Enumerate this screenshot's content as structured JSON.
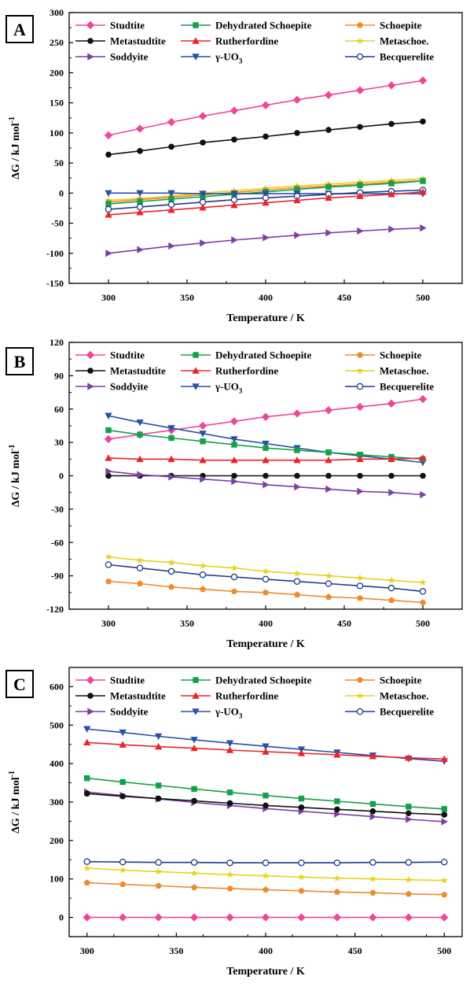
{
  "series_styles": [
    {
      "key": "studtite",
      "color": "#f0469a",
      "marker": "diamond"
    },
    {
      "key": "dehydrated",
      "color": "#13a04a",
      "marker": "square"
    },
    {
      "key": "schoepite",
      "color": "#f08a2c",
      "marker": "pentagon"
    },
    {
      "key": "metastudtite",
      "color": "#111111",
      "marker": "circle"
    },
    {
      "key": "rutherfordine",
      "color": "#e8262a",
      "marker": "triangle-up"
    },
    {
      "key": "metaschoe",
      "color": "#e8d21a",
      "marker": "star"
    },
    {
      "key": "soddyite",
      "color": "#7b3fa6",
      "marker": "triangle-right"
    },
    {
      "key": "uo3",
      "color": "#2a4fa8",
      "marker": "triangle-down"
    },
    {
      "key": "becquerelite",
      "color": "#1f3a8a",
      "marker": "open-circle"
    }
  ],
  "legend_labels": {
    "studtite": "Studtite",
    "dehydrated": "Dehydrated Schoepite",
    "schoepite": "Schoepite",
    "metastudtite": "Metastudtite",
    "rutherfordine": "Rutherfordine",
    "metaschoe": "Metaschoe.",
    "soddyite": "Soddyite",
    "uo3": "γ-UO",
    "uo3_sub": "3",
    "becquerelite": "Becquerelite"
  },
  "chart_data": [
    {
      "panel": "A",
      "type": "line",
      "xlabel": "Temperature / K",
      "ylabel": "ΔG / kJ mol",
      "ylabel_sup": "-1",
      "xlim": [
        275,
        525
      ],
      "ylim": [
        -150,
        300
      ],
      "xticks": [
        300,
        350,
        400,
        450,
        500
      ],
      "yticks": [
        -150,
        -100,
        -50,
        0,
        50,
        100,
        150,
        200,
        250,
        300
      ],
      "x": [
        300,
        320,
        340,
        360,
        380,
        400,
        420,
        440,
        460,
        480,
        500
      ],
      "series": [
        {
          "key": "studtite",
          "name": "Studtite",
          "values": [
            96,
            107,
            118,
            128,
            137,
            146,
            155,
            163,
            171,
            179,
            187
          ]
        },
        {
          "key": "metastudtite",
          "name": "Metastudtite",
          "values": [
            64,
            70,
            77,
            84,
            89,
            94,
            100,
            105,
            110,
            115,
            119
          ]
        },
        {
          "key": "metaschoe",
          "name": "Metaschoe.",
          "values": [
            -12,
            -9,
            -5,
            0,
            4,
            8,
            12,
            15,
            18,
            21,
            24
          ]
        },
        {
          "key": "schoepite",
          "name": "Schoepite",
          "values": [
            -15,
            -11,
            -7,
            -3,
            1,
            5,
            9,
            12,
            15,
            18,
            21
          ]
        },
        {
          "key": "dehydrated",
          "name": "Dehydrated Schoepite",
          "values": [
            -18,
            -14,
            -10,
            -6,
            -2,
            2,
            6,
            10,
            13,
            16,
            20
          ]
        },
        {
          "key": "uo3",
          "name": "γ-UO3",
          "values": [
            0,
            0,
            0,
            -1,
            -1,
            -1,
            -1,
            -1,
            -1,
            -1,
            -1
          ]
        },
        {
          "key": "becquerelite",
          "name": "Becquerelite",
          "values": [
            -27,
            -23,
            -19,
            -15,
            -11,
            -8,
            -5,
            -2,
            1,
            3,
            5
          ]
        },
        {
          "key": "rutherfordine",
          "name": "Rutherfordine",
          "values": [
            -36,
            -32,
            -28,
            -24,
            -20,
            -16,
            -12,
            -8,
            -5,
            -2,
            2
          ]
        },
        {
          "key": "soddyite",
          "name": "Soddyite",
          "values": [
            -100,
            -94,
            -88,
            -83,
            -78,
            -74,
            -70,
            -66,
            -63,
            -60,
            -58
          ]
        }
      ]
    },
    {
      "panel": "B",
      "type": "line",
      "xlabel": "Temperature / K",
      "ylabel": "ΔG / kJ mol",
      "ylabel_sup": "-1",
      "xlim": [
        275,
        525
      ],
      "ylim": [
        -120,
        120
      ],
      "xticks": [
        300,
        350,
        400,
        450,
        500
      ],
      "yticks": [
        -120,
        -90,
        -60,
        -30,
        0,
        30,
        60,
        90,
        120
      ],
      "x": [
        300,
        320,
        340,
        360,
        380,
        400,
        420,
        440,
        460,
        480,
        500
      ],
      "series": [
        {
          "key": "studtite",
          "name": "Studtite",
          "values": [
            33,
            37,
            41,
            45,
            49,
            53,
            56,
            59,
            62,
            65,
            69
          ]
        },
        {
          "key": "uo3",
          "name": "γ-UO3",
          "values": [
            54,
            48,
            43,
            38,
            33,
            29,
            25,
            21,
            18,
            15,
            12
          ]
        },
        {
          "key": "dehydrated",
          "name": "Dehydrated Schoepite",
          "values": [
            41,
            37,
            34,
            31,
            28,
            25,
            23,
            21,
            19,
            17,
            15
          ]
        },
        {
          "key": "rutherfordine",
          "name": "Rutherfordine",
          "values": [
            16,
            15,
            15,
            14,
            14,
            14,
            14,
            14,
            15,
            15,
            16
          ]
        },
        {
          "key": "metastudtite",
          "name": "Metastudtite",
          "values": [
            0,
            0,
            0,
            0,
            0,
            0,
            0,
            0,
            0,
            0,
            0
          ]
        },
        {
          "key": "soddyite",
          "name": "Soddyite",
          "values": [
            4,
            1,
            -1,
            -3,
            -5,
            -8,
            -10,
            -12,
            -14,
            -15,
            -17
          ]
        },
        {
          "key": "metaschoe",
          "name": "Metaschoe.",
          "values": [
            -73,
            -76,
            -78,
            -81,
            -83,
            -86,
            -88,
            -90,
            -92,
            -94,
            -96
          ]
        },
        {
          "key": "becquerelite",
          "name": "Becquerelite",
          "values": [
            -80,
            -83,
            -86,
            -89,
            -91,
            -93,
            -95,
            -97,
            -99,
            -101,
            -104
          ]
        },
        {
          "key": "schoepite",
          "name": "Schoepite",
          "values": [
            -95,
            -97,
            -100,
            -102,
            -104,
            -105,
            -107,
            -109,
            -110,
            -112,
            -114
          ]
        }
      ]
    },
    {
      "panel": "C",
      "type": "line",
      "xlabel": "Temperature / K",
      "ylabel": "ΔG / kJ mol",
      "ylabel_sup": "-1",
      "xlim": [
        290,
        510
      ],
      "ylim": [
        -50,
        650
      ],
      "xticks": [
        300,
        350,
        400,
        450,
        500
      ],
      "yticks": [
        0,
        100,
        200,
        300,
        400,
        500,
        600
      ],
      "x": [
        300,
        320,
        340,
        360,
        380,
        400,
        420,
        440,
        460,
        480,
        500
      ],
      "series": [
        {
          "key": "uo3",
          "name": "γ-UO3",
          "values": [
            490,
            481,
            471,
            462,
            453,
            445,
            437,
            429,
            421,
            413,
            406
          ]
        },
        {
          "key": "rutherfordine",
          "name": "Rutherfordine",
          "values": [
            455,
            449,
            444,
            440,
            435,
            431,
            427,
            423,
            419,
            415,
            412
          ]
        },
        {
          "key": "dehydrated",
          "name": "Dehydrated Schoepite",
          "values": [
            362,
            352,
            343,
            334,
            325,
            317,
            309,
            302,
            295,
            288,
            282
          ]
        },
        {
          "key": "soddyite",
          "name": "Soddyite",
          "values": [
            326,
            317,
            308,
            299,
            291,
            283,
            276,
            269,
            262,
            255,
            249
          ]
        },
        {
          "key": "metastudtite",
          "name": "Metastudtite",
          "values": [
            322,
            315,
            309,
            303,
            297,
            291,
            286,
            281,
            276,
            271,
            267
          ]
        },
        {
          "key": "becquerelite",
          "name": "Becquerelite",
          "values": [
            145,
            144,
            143,
            143,
            142,
            142,
            142,
            142,
            143,
            143,
            144
          ]
        },
        {
          "key": "metaschoe",
          "name": "Metaschoe.",
          "values": [
            128,
            123,
            119,
            115,
            111,
            108,
            105,
            102,
            100,
            98,
            96
          ]
        },
        {
          "key": "schoepite",
          "name": "Schoepite",
          "values": [
            90,
            86,
            82,
            78,
            75,
            72,
            69,
            66,
            64,
            61,
            59
          ]
        },
        {
          "key": "studtite",
          "name": "Studtite",
          "values": [
            0,
            0,
            0,
            0,
            0,
            0,
            0,
            0,
            0,
            0,
            0
          ]
        }
      ]
    }
  ]
}
